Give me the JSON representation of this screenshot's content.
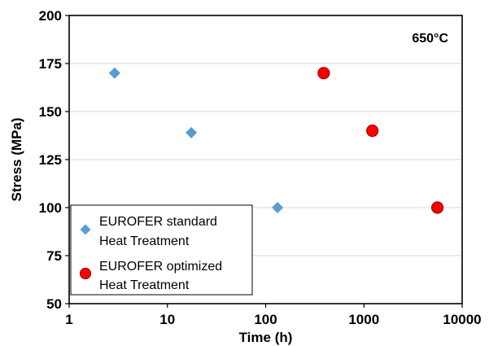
{
  "chart_data": {
    "type": "scatter",
    "title": "",
    "annotation": "650°C",
    "xlabel": "Time (h)",
    "ylabel": "Stress (MPa)",
    "xscale": "log",
    "xlim": [
      1,
      10000
    ],
    "ylim": [
      50,
      200
    ],
    "xticks": [
      "1",
      "10",
      "100",
      "1000",
      "10000"
    ],
    "yticks": [
      "50",
      "75",
      "100",
      "125",
      "150",
      "175",
      "200"
    ],
    "grid": "horizontal",
    "legend_position": "bottom-left",
    "series": [
      {
        "name": "EUROFER standard Heat Treatment",
        "legend_lines": [
          "EUROFER standard",
          "Heat Treatment"
        ],
        "marker": "diamond",
        "color": "#5b9bd5",
        "points": [
          {
            "x": 2.9,
            "y": 170
          },
          {
            "x": 17.5,
            "y": 139
          },
          {
            "x": 132,
            "y": 100
          }
        ]
      },
      {
        "name": "EUROFER optimized Heat Treatment",
        "legend_lines": [
          "EUROFER optimized",
          "Heat Treatment"
        ],
        "marker": "circle",
        "color": "#ff0000",
        "edge_color": "#a00000",
        "points": [
          {
            "x": 390,
            "y": 170
          },
          {
            "x": 1220,
            "y": 140
          },
          {
            "x": 5600,
            "y": 100
          }
        ]
      }
    ]
  }
}
